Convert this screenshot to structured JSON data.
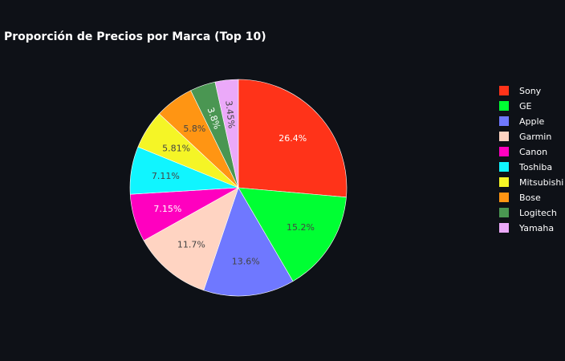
{
  "chart_data": {
    "type": "pie",
    "title": "Proporción de Precios por Marca (Top 10)",
    "categories": [
      "Sony",
      "GE",
      "Apple",
      "Garmin",
      "Canon",
      "Toshiba",
      "Mitsubishi",
      "Bose",
      "Logitech",
      "Yamaha"
    ],
    "values": [
      26.4,
      15.2,
      13.6,
      11.7,
      7.15,
      7.11,
      5.81,
      5.8,
      3.8,
      3.45
    ],
    "labels": [
      "26.4%",
      "15.2%",
      "13.6%",
      "11.7%",
      "7.15%",
      "7.11%",
      "5.81%",
      "5.8%",
      "3.8%",
      "3.45%"
    ],
    "colors": [
      "#ff3319",
      "#00ff33",
      "#6f78ff",
      "#ffd4c2",
      "#ff00bf",
      "#10f5ff",
      "#f5f526",
      "#ff9513",
      "#4a9652",
      "#eba9f9"
    ],
    "label_colors": [
      "#ffffff",
      "#444444",
      "#444444",
      "#444444",
      "#ffffff",
      "#444444",
      "#444444",
      "#444444",
      "#ffffff",
      "#444444"
    ],
    "legend_position": "right",
    "direction": "clockwise",
    "start_angle": "top"
  }
}
